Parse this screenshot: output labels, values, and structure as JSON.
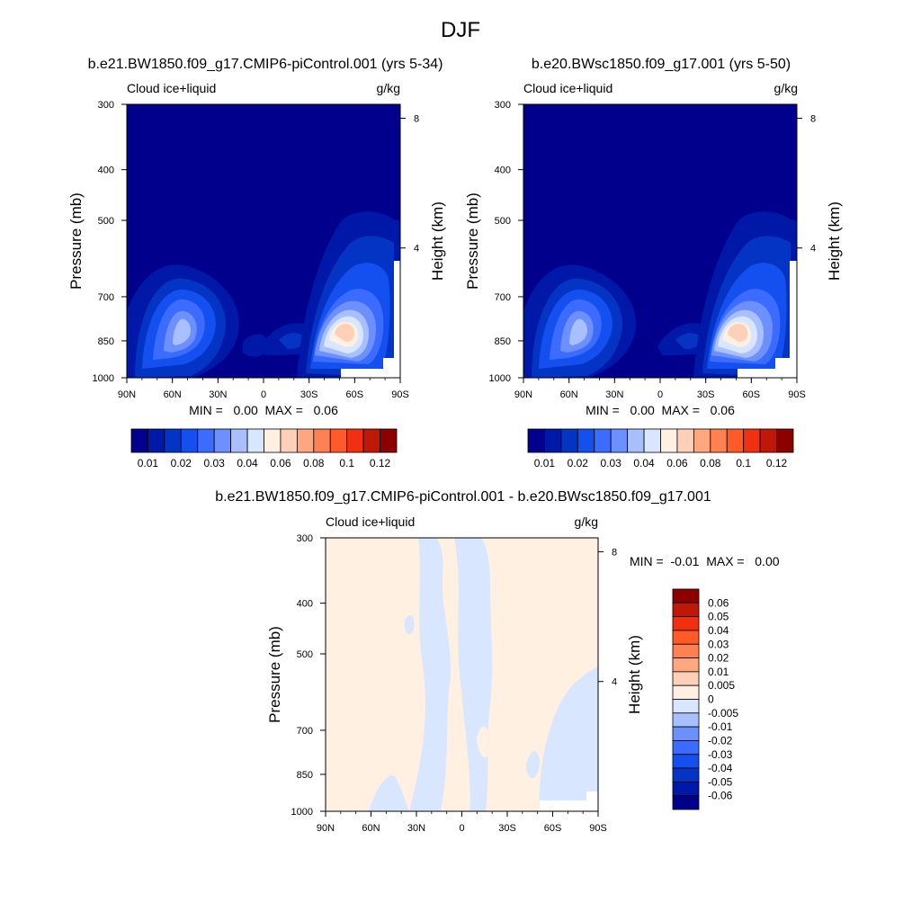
{
  "page_title": "DJF",
  "panels": {
    "p1": {
      "title": "b.e21.BW1850.f09_g17.CMIP6-piControl.001 (yrs 5-34)",
      "left_label": "Cloud ice+liquid",
      "right_label": "g/kg",
      "minmax": "MIN =   0.00  MAX =   0.06"
    },
    "p2": {
      "title": "b.e20.BWsc1850.f09_g17.001 (yrs 5-50)",
      "left_label": "Cloud ice+liquid",
      "right_label": "g/kg",
      "minmax": "MIN =   0.00  MAX =   0.06"
    },
    "p3": {
      "title": "b.e21.BW1850.f09_g17.CMIP6-piControl.001 - b.e20.BWsc1850.f09_g17.001",
      "left_label": "Cloud ice+liquid",
      "right_label": "g/kg",
      "minmax": "MIN =  -0.01  MAX =   0.00"
    }
  },
  "colorbars": {
    "abs": {
      "colors": [
        "#00008c",
        "#0018a8",
        "#0434c4",
        "#1450f0",
        "#3c6cff",
        "#6c90ff",
        "#a8c0ff",
        "#d8e6ff",
        "#fff0e2",
        "#ffd0b8",
        "#ffa880",
        "#ff8050",
        "#ff5a28",
        "#f03010",
        "#c01808",
        "#8c0000"
      ],
      "labels": [
        "0.01",
        "0.02",
        "0.03",
        "0.04",
        "0.06",
        "0.08",
        "0.1",
        "0.12"
      ]
    },
    "diff": {
      "colors": [
        "#8c0000",
        "#c01808",
        "#f03010",
        "#ff5a28",
        "#ff8050",
        "#ffa880",
        "#ffd0b8",
        "#fff0e2",
        "#d8e6ff",
        "#a8c0ff",
        "#6c90ff",
        "#3c6cff",
        "#1450f0",
        "#0434c4",
        "#0018a8",
        "#00008c"
      ],
      "labels": [
        "0.06",
        "0.05",
        "0.04",
        "0.03",
        "0.02",
        "0.01",
        "0.005",
        "0",
        "-0.005",
        "-0.01",
        "-0.02",
        "-0.03",
        "-0.04",
        "-0.05",
        "-0.06"
      ]
    }
  },
  "chart_data": [
    {
      "type": "heatmap",
      "title": "b.e21.BW1850.f09_g17.CMIP6-piControl.001 (yrs 5-34)",
      "xlabel": "",
      "ylabel": "Pressure (mb)",
      "y2label": "Height (km)",
      "variable": "Cloud ice+liquid",
      "units": "g/kg",
      "x_ticks": [
        "90N",
        "60N",
        "30N",
        "0",
        "30S",
        "60S",
        "90S"
      ],
      "y_ticks": [
        "300",
        "400",
        "500",
        "700",
        "850",
        "1000"
      ],
      "y2_ticks": [
        "8",
        "4"
      ],
      "ylim": [
        1000,
        300
      ],
      "ylog": true,
      "features": [
        {
          "lat": 55,
          "p": 860,
          "value": 0.04
        },
        {
          "lat": -55,
          "p": 865,
          "value": 0.06
        }
      ],
      "min": 0.0,
      "max": 0.06
    },
    {
      "type": "heatmap",
      "title": "b.e20.BWsc1850.f09_g17.001 (yrs 5-50)",
      "xlabel": "",
      "ylabel": "Pressure (mb)",
      "y2label": "Height (km)",
      "variable": "Cloud ice+liquid",
      "units": "g/kg",
      "x_ticks": [
        "90N",
        "60N",
        "30N",
        "0",
        "30S",
        "60S",
        "90S"
      ],
      "y_ticks": [
        "300",
        "400",
        "500",
        "700",
        "850",
        "1000"
      ],
      "y2_ticks": [
        "8",
        "4"
      ],
      "ylim": [
        1000,
        300
      ],
      "ylog": true,
      "features": [
        {
          "lat": 55,
          "p": 860,
          "value": 0.04
        },
        {
          "lat": -52,
          "p": 860,
          "value": 0.06
        }
      ],
      "min": 0.0,
      "max": 0.06
    },
    {
      "type": "heatmap",
      "title": "b.e21.BW1850.f09_g17.CMIP6-piControl.001 - b.e20.BWsc1850.f09_g17.001",
      "xlabel": "",
      "ylabel": "Pressure (mb)",
      "y2label": "Height (km)",
      "variable": "Cloud ice+liquid",
      "units": "g/kg",
      "x_ticks": [
        "90N",
        "60N",
        "30N",
        "0",
        "30S",
        "60S",
        "90S"
      ],
      "y_ticks": [
        "300",
        "400",
        "500",
        "700",
        "850",
        "1000"
      ],
      "y2_ticks": [
        "8",
        "4"
      ],
      "ylim": [
        1000,
        300
      ],
      "ylog": true,
      "min": -0.01,
      "max": 0.0
    }
  ]
}
